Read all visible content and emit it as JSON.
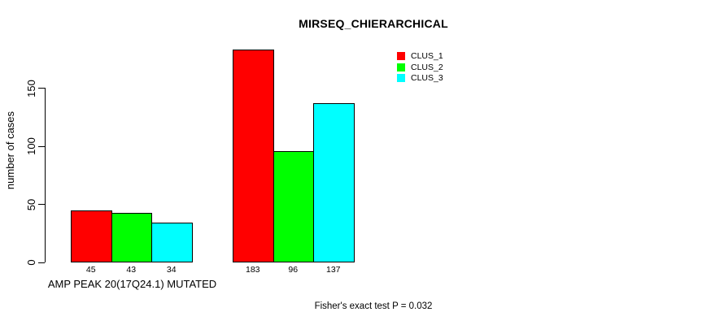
{
  "chart_data": {
    "type": "bar",
    "title": "MIRSEQ_CHIERARCHICAL",
    "ylabel": "number of cases",
    "xlabel": "",
    "group_label": "AMP PEAK 20(17Q24.1) MUTATED",
    "annotation": "Fisher's exact test P = 0.032",
    "groups": [
      "AMP PEAK 20(17Q24.1) MUTATED",
      ""
    ],
    "series": [
      {
        "name": "CLUS_1",
        "color": "#FF0000",
        "values": [
          45,
          183
        ]
      },
      {
        "name": "CLUS_2",
        "color": "#00FF00",
        "values": [
          43,
          96
        ]
      },
      {
        "name": "CLUS_3",
        "color": "#00FFFF",
        "values": [
          34,
          137
        ]
      }
    ],
    "bar_value_labels": [
      [
        45,
        43,
        34
      ],
      [
        183,
        96,
        137
      ]
    ],
    "yticks": [
      0,
      50,
      100,
      150
    ],
    "ylim": [
      0,
      190
    ],
    "grid": false,
    "legend_position": "top-right",
    "bar_border_color": "#000000",
    "background_color": "#FFFFFF"
  }
}
